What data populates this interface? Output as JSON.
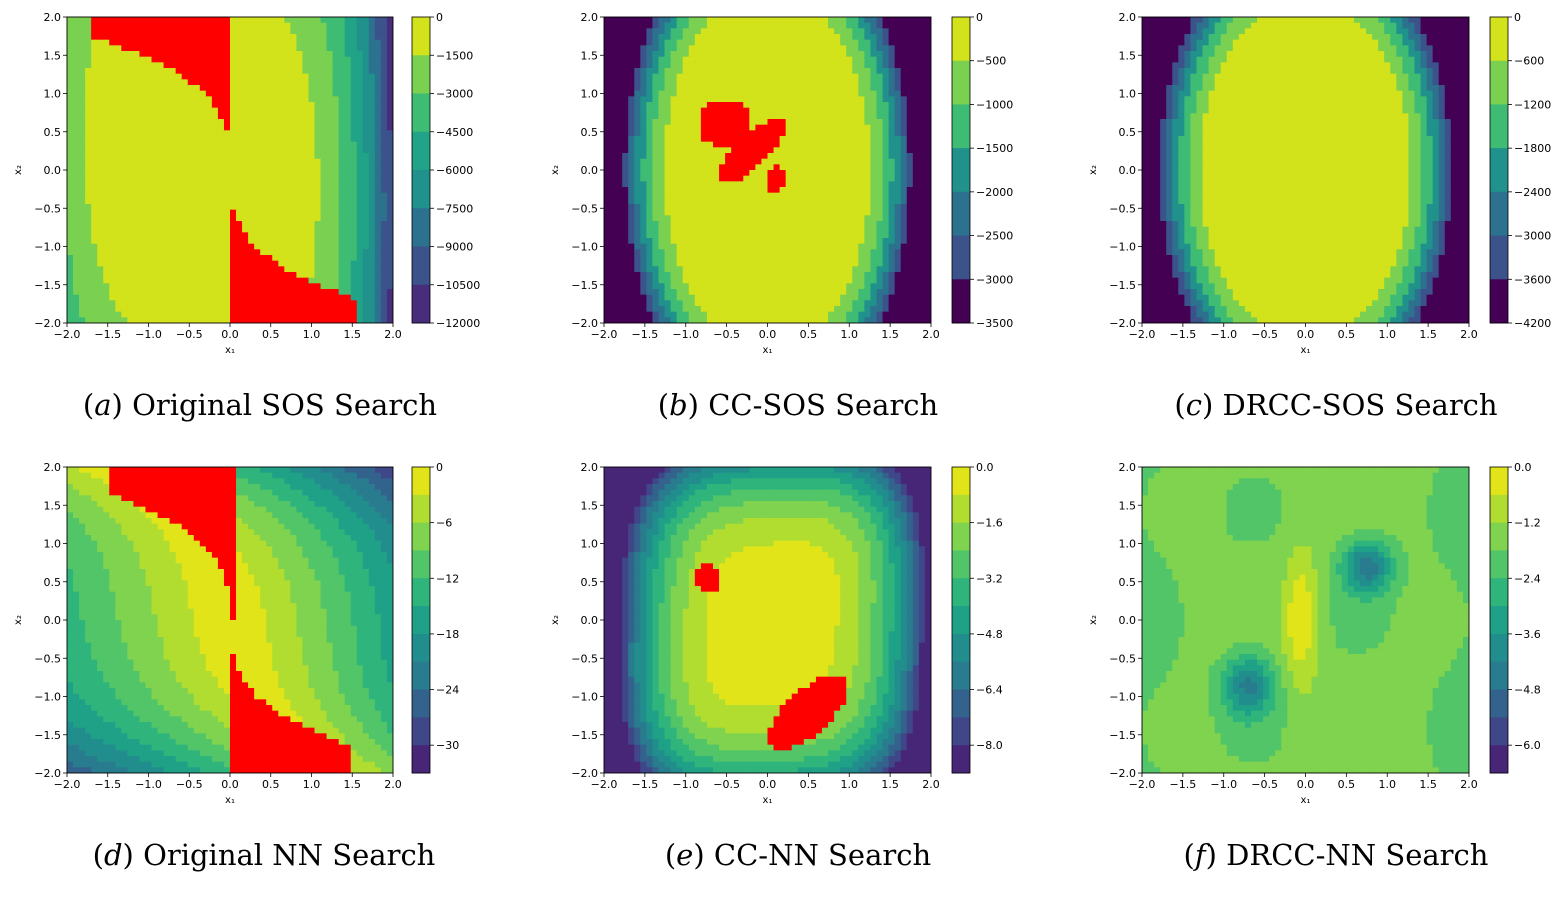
{
  "chart_data": [
    {
      "type": "contour",
      "panel": "a",
      "caption": "Original SOS Search",
      "xlabel": "x₁",
      "ylabel": "x₂",
      "xlim": [
        -2.0,
        2.0
      ],
      "ylim": [
        -2.0,
        2.0
      ],
      "xticks": [
        "−2.0",
        "−1.5",
        "−1.0",
        "−0.5",
        "0.0",
        "0.5",
        "1.0",
        "1.5",
        "2.0"
      ],
      "yticks": [
        "−2.0",
        "−1.5",
        "−1.0",
        "−0.5",
        "0.0",
        "0.5",
        "1.0",
        "1.5",
        "2.0"
      ],
      "colorbar": {
        "ticks": [
          "0",
          "−1500",
          "−3000",
          "−4500",
          "−6000",
          "−7500",
          "−9000",
          "−10500",
          "−12000"
        ],
        "levels": 8,
        "colors": [
          "#d2e21b",
          "#7ad151",
          "#3fbc73",
          "#20a386",
          "#21918c",
          "#2c728e",
          "#3b528b",
          "#472d7b"
        ]
      },
      "highlight_color": "#ff0000"
    },
    {
      "type": "contour",
      "panel": "b",
      "caption": "CC-SOS Search",
      "xlabel": "x₁",
      "ylabel": "x₂",
      "xlim": [
        -2.0,
        2.0
      ],
      "ylim": [
        -2.0,
        2.0
      ],
      "xticks": [
        "−2.0",
        "−1.5",
        "−1.0",
        "−0.5",
        "0.0",
        "0.5",
        "1.0",
        "1.5",
        "2.0"
      ],
      "yticks": [
        "−2.0",
        "−1.5",
        "−1.0",
        "−0.5",
        "0.0",
        "0.5",
        "1.0",
        "1.5",
        "2.0"
      ],
      "colorbar": {
        "ticks": [
          "0",
          "−500",
          "−1000",
          "−1500",
          "−2000",
          "−2500",
          "−3000",
          "−3500"
        ],
        "levels": 7,
        "colors": [
          "#d2e21b",
          "#7ad151",
          "#3fbc73",
          "#21918c",
          "#2c728e",
          "#3b528b",
          "#440154"
        ]
      },
      "highlight_color": "#ff0000"
    },
    {
      "type": "contour",
      "panel": "c",
      "caption": "DRCC-SOS Search",
      "xlabel": "x₁",
      "ylabel": "x₂",
      "xlim": [
        -2.0,
        2.0
      ],
      "ylim": [
        -2.0,
        2.0
      ],
      "xticks": [
        "−2.0",
        "−1.5",
        "−1.0",
        "−0.5",
        "0.0",
        "0.5",
        "1.0",
        "1.5",
        "2.0"
      ],
      "yticks": [
        "−2.0",
        "−1.5",
        "−1.0",
        "−0.5",
        "0.0",
        "0.5",
        "1.0",
        "1.5",
        "2.0"
      ],
      "colorbar": {
        "ticks": [
          "0",
          "−600",
          "−1200",
          "−1800",
          "−2400",
          "−3000",
          "−3600",
          "−4200"
        ],
        "levels": 7,
        "colors": [
          "#d2e21b",
          "#7ad151",
          "#3fbc73",
          "#21918c",
          "#2c728e",
          "#3b528b",
          "#440154"
        ]
      },
      "highlight_color": "#ff0000"
    },
    {
      "type": "contour",
      "panel": "d",
      "caption": "Original NN Search",
      "xlabel": "x₁",
      "ylabel": "x₂",
      "xlim": [
        -2.0,
        2.0
      ],
      "ylim": [
        -2.0,
        2.0
      ],
      "xticks": [
        "−2.0",
        "−1.5",
        "−1.0",
        "−0.5",
        "0.0",
        "0.5",
        "1.0",
        "1.5",
        "2.0"
      ],
      "yticks": [
        "−2.0",
        "−1.5",
        "−1.0",
        "−0.5",
        "0.0",
        "0.5",
        "1.0",
        "1.5",
        "2.0"
      ],
      "colorbar": {
        "ticks": [
          "0",
          "−6",
          "−12",
          "−18",
          "−24",
          "−30"
        ],
        "levels": 11,
        "colors": [
          "#e1e419",
          "#b0dd2f",
          "#7fd34e",
          "#52c569",
          "#2fb47c",
          "#1fa187",
          "#218e8d",
          "#297b8e",
          "#33638d",
          "#3f4788",
          "#482677"
        ]
      },
      "highlight_color": "#ff0000"
    },
    {
      "type": "contour",
      "panel": "e",
      "caption": "CC-NN Search",
      "xlabel": "x₁",
      "ylabel": "x₂",
      "xlim": [
        -2.0,
        2.0
      ],
      "ylim": [
        -2.0,
        2.0
      ],
      "xticks": [
        "−2.0",
        "−1.5",
        "−1.0",
        "−0.5",
        "0.0",
        "0.5",
        "1.0",
        "1.5",
        "2.0"
      ],
      "yticks": [
        "−2.0",
        "−1.5",
        "−1.0",
        "−0.5",
        "0.0",
        "0.5",
        "1.0",
        "1.5",
        "2.0"
      ],
      "colorbar": {
        "ticks": [
          "0.0",
          "−1.6",
          "−3.2",
          "−4.8",
          "−6.4",
          "−8.0"
        ],
        "levels": 11,
        "colors": [
          "#e1e419",
          "#b0dd2f",
          "#7fd34e",
          "#52c569",
          "#2fb47c",
          "#1fa187",
          "#218e8d",
          "#297b8e",
          "#33638d",
          "#3f4788",
          "#482677"
        ]
      },
      "highlight_color": "#ff0000"
    },
    {
      "type": "contour",
      "panel": "f",
      "caption": "DRCC-NN Search",
      "xlabel": "x₁",
      "ylabel": "x₂",
      "xlim": [
        -2.0,
        2.0
      ],
      "ylim": [
        -2.0,
        2.0
      ],
      "xticks": [
        "−2.0",
        "−1.5",
        "−1.0",
        "−0.5",
        "0.0",
        "0.5",
        "1.0",
        "1.5",
        "2.0"
      ],
      "yticks": [
        "−2.0",
        "−1.5",
        "−1.0",
        "−0.5",
        "0.0",
        "0.5",
        "1.0",
        "1.5",
        "2.0"
      ],
      "colorbar": {
        "ticks": [
          "0.0",
          "−1.2",
          "−2.4",
          "−3.6",
          "−4.8",
          "−6.0"
        ],
        "levels": 11,
        "colors": [
          "#e1e419",
          "#b0dd2f",
          "#7fd34e",
          "#52c569",
          "#2fb47c",
          "#1fa187",
          "#218e8d",
          "#297b8e",
          "#33638d",
          "#3f4788",
          "#482677"
        ]
      },
      "highlight_color": "#ff0000"
    }
  ]
}
